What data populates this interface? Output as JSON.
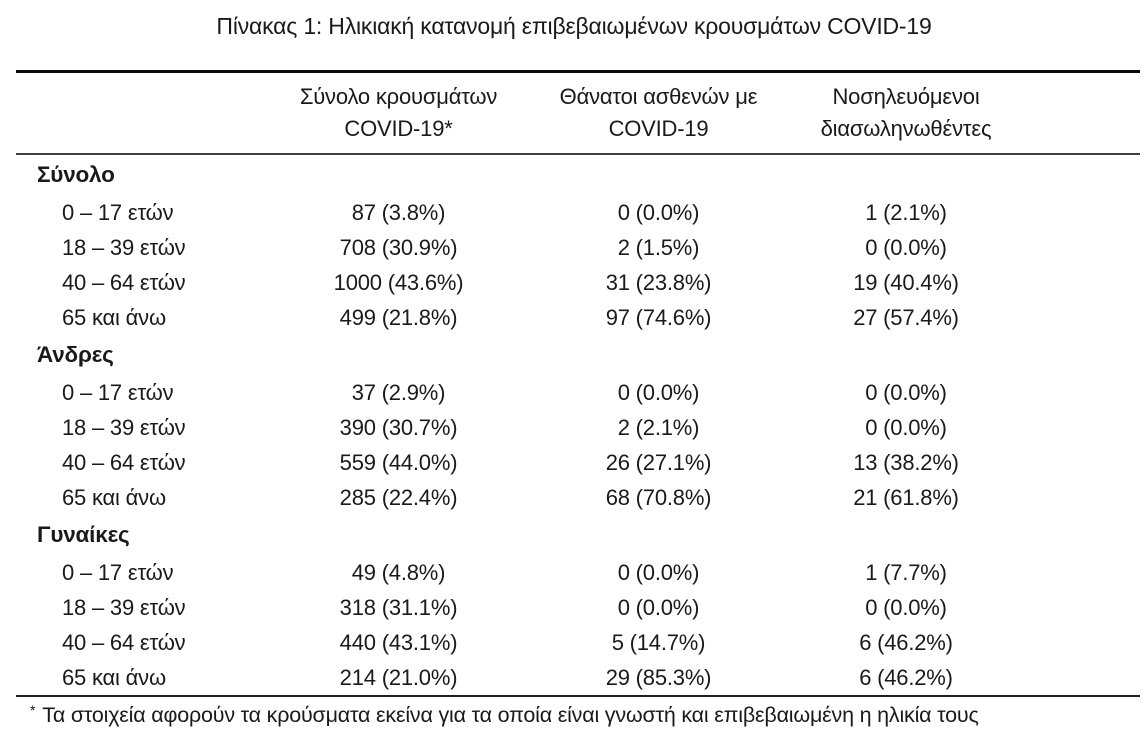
{
  "title": "Πίνακας 1: Ηλικιακή κατανομή επιβεβαιωμένων κρουσμάτων COVID-19",
  "table": {
    "column_headers": [
      {
        "line1": "Σύνολο κρουσμάτων",
        "line2": "COVID-19*"
      },
      {
        "line1": "Θάνατοι ασθενών με",
        "line2": "COVID-19"
      },
      {
        "line1": "Νοσηλευόμενοι",
        "line2": "διασωληνωθέντες"
      }
    ],
    "groups": [
      {
        "label": "Σύνολο",
        "rows": [
          {
            "age": "0 – 17 ετών",
            "cases": "87 (3.8%)",
            "deaths": "0 (0.0%)",
            "intubated": "1 (2.1%)"
          },
          {
            "age": "18 – 39 ετών",
            "cases": "708 (30.9%)",
            "deaths": "2 (1.5%)",
            "intubated": "0 (0.0%)"
          },
          {
            "age": "40 – 64 ετών",
            "cases": "1000 (43.6%)",
            "deaths": "31 (23.8%)",
            "intubated": "19 (40.4%)"
          },
          {
            "age": "65 και άνω",
            "cases": "499 (21.8%)",
            "deaths": "97 (74.6%)",
            "intubated": "27 (57.4%)"
          }
        ]
      },
      {
        "label": "Άνδρες",
        "rows": [
          {
            "age": "0 – 17 ετών",
            "cases": "37 (2.9%)",
            "deaths": "0 (0.0%)",
            "intubated": "0 (0.0%)"
          },
          {
            "age": "18 – 39 ετών",
            "cases": "390 (30.7%)",
            "deaths": "2 (2.1%)",
            "intubated": "0 (0.0%)"
          },
          {
            "age": "40 – 64 ετών",
            "cases": "559 (44.0%)",
            "deaths": "26 (27.1%)",
            "intubated": "13 (38.2%)"
          },
          {
            "age": "65 και άνω",
            "cases": "285 (22.4%)",
            "deaths": "68 (70.8%)",
            "intubated": "21 (61.8%)"
          }
        ]
      },
      {
        "label": "Γυναίκες",
        "rows": [
          {
            "age": "0 – 17 ετών",
            "cases": "49 (4.8%)",
            "deaths": "0 (0.0%)",
            "intubated": "1 (7.7%)"
          },
          {
            "age": "18 – 39 ετών",
            "cases": "318 (31.1%)",
            "deaths": "0 (0.0%)",
            "intubated": "0 (0.0%)"
          },
          {
            "age": "40 – 64 ετών",
            "cases": "440 (43.1%)",
            "deaths": "5 (14.7%)",
            "intubated": "6 (46.2%)"
          },
          {
            "age": "65 και άνω",
            "cases": "214 (21.0%)",
            "deaths": "29 (85.3%)",
            "intubated": "6 (46.2%)"
          }
        ]
      }
    ]
  },
  "footnote": {
    "marker": "*",
    "text": "Τα στοιχεία αφορούν τα κρούσματα εκείνα για τα οποία είναι γνωστή και επιβεβαιωμένη η ηλικία τους"
  },
  "colors": {
    "text": "#1a1a1a",
    "rule_heavy": "#0b0b0b",
    "rule_medium": "#3f3f3f",
    "background": "#ffffff"
  }
}
